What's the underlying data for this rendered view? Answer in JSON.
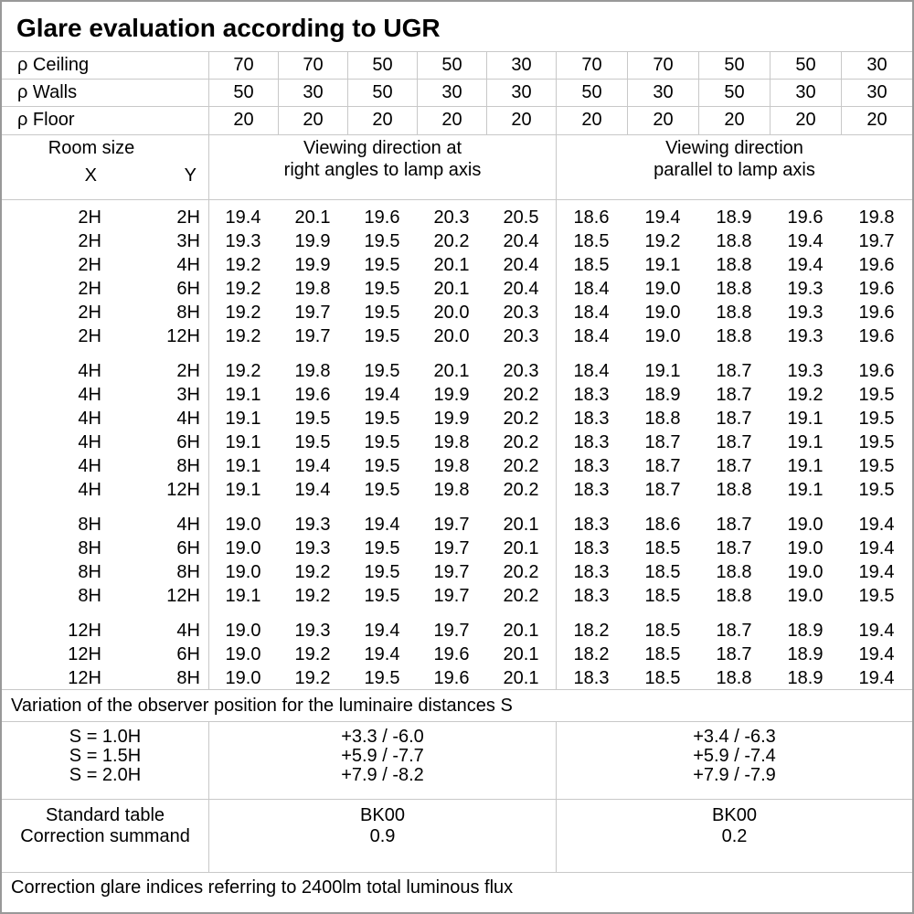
{
  "title": "Glare evaluation according to UGR",
  "reflectance_rows": [
    {
      "label": "ρ Ceiling",
      "values": [
        "70",
        "70",
        "50",
        "50",
        "30",
        "70",
        "70",
        "50",
        "50",
        "30"
      ]
    },
    {
      "label": "ρ Walls",
      "values": [
        "50",
        "30",
        "50",
        "30",
        "30",
        "50",
        "30",
        "50",
        "30",
        "30"
      ]
    },
    {
      "label": "ρ Floor",
      "values": [
        "20",
        "20",
        "20",
        "20",
        "20",
        "20",
        "20",
        "20",
        "20",
        "20"
      ]
    }
  ],
  "table_header": {
    "room_size_label": "Room size",
    "x_label": "X",
    "y_label": "Y",
    "group_right_angles": [
      "Viewing direction at",
      "right angles to lamp axis"
    ],
    "group_parallel": [
      "Viewing direction",
      "parallel to lamp axis"
    ]
  },
  "ugr_groups": [
    {
      "rows": [
        {
          "x": "2H",
          "y": "2H",
          "values": [
            "19.4",
            "20.1",
            "19.6",
            "20.3",
            "20.5",
            "18.6",
            "19.4",
            "18.9",
            "19.6",
            "19.8"
          ]
        },
        {
          "x": "2H",
          "y": "3H",
          "values": [
            "19.3",
            "19.9",
            "19.5",
            "20.2",
            "20.4",
            "18.5",
            "19.2",
            "18.8",
            "19.4",
            "19.7"
          ]
        },
        {
          "x": "2H",
          "y": "4H",
          "values": [
            "19.2",
            "19.9",
            "19.5",
            "20.1",
            "20.4",
            "18.5",
            "19.1",
            "18.8",
            "19.4",
            "19.6"
          ]
        },
        {
          "x": "2H",
          "y": "6H",
          "values": [
            "19.2",
            "19.8",
            "19.5",
            "20.1",
            "20.4",
            "18.4",
            "19.0",
            "18.8",
            "19.3",
            "19.6"
          ]
        },
        {
          "x": "2H",
          "y": "8H",
          "values": [
            "19.2",
            "19.7",
            "19.5",
            "20.0",
            "20.3",
            "18.4",
            "19.0",
            "18.8",
            "19.3",
            "19.6"
          ]
        },
        {
          "x": "2H",
          "y": "12H",
          "values": [
            "19.2",
            "19.7",
            "19.5",
            "20.0",
            "20.3",
            "18.4",
            "19.0",
            "18.8",
            "19.3",
            "19.6"
          ]
        }
      ]
    },
    {
      "rows": [
        {
          "x": "4H",
          "y": "2H",
          "values": [
            "19.2",
            "19.8",
            "19.5",
            "20.1",
            "20.3",
            "18.4",
            "19.1",
            "18.7",
            "19.3",
            "19.6"
          ]
        },
        {
          "x": "4H",
          "y": "3H",
          "values": [
            "19.1",
            "19.6",
            "19.4",
            "19.9",
            "20.2",
            "18.3",
            "18.9",
            "18.7",
            "19.2",
            "19.5"
          ]
        },
        {
          "x": "4H",
          "y": "4H",
          "values": [
            "19.1",
            "19.5",
            "19.5",
            "19.9",
            "20.2",
            "18.3",
            "18.8",
            "18.7",
            "19.1",
            "19.5"
          ]
        },
        {
          "x": "4H",
          "y": "6H",
          "values": [
            "19.1",
            "19.5",
            "19.5",
            "19.8",
            "20.2",
            "18.3",
            "18.7",
            "18.7",
            "19.1",
            "19.5"
          ]
        },
        {
          "x": "4H",
          "y": "8H",
          "values": [
            "19.1",
            "19.4",
            "19.5",
            "19.8",
            "20.2",
            "18.3",
            "18.7",
            "18.7",
            "19.1",
            "19.5"
          ]
        },
        {
          "x": "4H",
          "y": "12H",
          "values": [
            "19.1",
            "19.4",
            "19.5",
            "19.8",
            "20.2",
            "18.3",
            "18.7",
            "18.8",
            "19.1",
            "19.5"
          ]
        }
      ]
    },
    {
      "rows": [
        {
          "x": "8H",
          "y": "4H",
          "values": [
            "19.0",
            "19.3",
            "19.4",
            "19.7",
            "20.1",
            "18.3",
            "18.6",
            "18.7",
            "19.0",
            "19.4"
          ]
        },
        {
          "x": "8H",
          "y": "6H",
          "values": [
            "19.0",
            "19.3",
            "19.5",
            "19.7",
            "20.1",
            "18.3",
            "18.5",
            "18.7",
            "19.0",
            "19.4"
          ]
        },
        {
          "x": "8H",
          "y": "8H",
          "values": [
            "19.0",
            "19.2",
            "19.5",
            "19.7",
            "20.2",
            "18.3",
            "18.5",
            "18.8",
            "19.0",
            "19.4"
          ]
        },
        {
          "x": "8H",
          "y": "12H",
          "values": [
            "19.1",
            "19.2",
            "19.5",
            "19.7",
            "20.2",
            "18.3",
            "18.5",
            "18.8",
            "19.0",
            "19.5"
          ]
        }
      ]
    },
    {
      "rows": [
        {
          "x": "12H",
          "y": "4H",
          "values": [
            "19.0",
            "19.3",
            "19.4",
            "19.7",
            "20.1",
            "18.2",
            "18.5",
            "18.7",
            "18.9",
            "19.4"
          ]
        },
        {
          "x": "12H",
          "y": "6H",
          "values": [
            "19.0",
            "19.2",
            "19.4",
            "19.6",
            "20.1",
            "18.2",
            "18.5",
            "18.7",
            "18.9",
            "19.4"
          ]
        },
        {
          "x": "12H",
          "y": "8H",
          "values": [
            "19.0",
            "19.2",
            "19.5",
            "19.6",
            "20.1",
            "18.3",
            "18.5",
            "18.8",
            "18.9",
            "19.4"
          ]
        }
      ]
    }
  ],
  "variation_note": "Variation of the observer position for the luminaire distances S",
  "s_rows": [
    {
      "label": "S = 1.0H",
      "right_angles": "+3.3 / -6.0",
      "parallel": "+3.4 / -6.3"
    },
    {
      "label": "S = 1.5H",
      "right_angles": "+5.9 / -7.7",
      "parallel": "+5.9 / -7.4"
    },
    {
      "label": "S = 2.0H",
      "right_angles": "+7.9 / -8.2",
      "parallel": "+7.9 / -7.9"
    }
  ],
  "standard": {
    "table_label": "Standard table",
    "summand_label": "Correction summand",
    "table_right_angles": "BK00",
    "table_parallel": "BK00",
    "summand_right_angles": "0.9",
    "summand_parallel": "0.2"
  },
  "footnote": "Correction glare indices referring to 2400lm total luminous flux"
}
